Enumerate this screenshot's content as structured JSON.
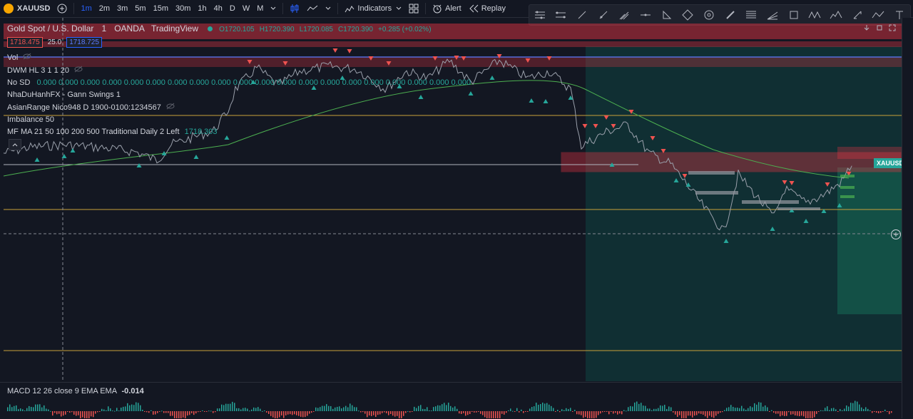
{
  "toolbar": {
    "symbol": "XAUUSD",
    "add_symbol_icon": "plus-circle-icon",
    "intervals": [
      "1m",
      "2m",
      "3m",
      "5m",
      "15m",
      "30m",
      "1h",
      "4h",
      "D",
      "W",
      "M"
    ],
    "active_interval": "1m",
    "indicators_label": "Indicators",
    "alert_label": "Alert",
    "replay_label": "Replay"
  },
  "drawing_tools": [
    "horizontal-lines-icon",
    "parallel-channel-icon",
    "trend-line-icon",
    "ray-icon",
    "pitchfork-icon",
    "horizontal-ray-icon",
    "triangle-icon",
    "diamond-icon",
    "circle-icon",
    "brush-icon",
    "fib-icon",
    "fib-fan-icon",
    "rectangle-icon",
    "pattern-icon",
    "elliott-icon",
    "measure-icon",
    "path-icon",
    "text-icon"
  ],
  "header": {
    "title": "Gold Spot / U.S. Dollar",
    "interval": "1",
    "broker": "OANDA",
    "source": "TradingView",
    "ohlc": {
      "o": "O1720.105",
      "h": "H1720.390",
      "l": "L1720.085",
      "c": "C1720.390",
      "chg": "+0.285 (+0.02%)"
    }
  },
  "price_boxes": {
    "bid": "1718.475",
    "spread": "25.0",
    "ask": "1718.725"
  },
  "legends": [
    {
      "name": "Vol",
      "values": ""
    },
    {
      "name": "DWM HL 3 1 1 20",
      "values": ""
    },
    {
      "name": "No SD",
      "values": "0.000 0.000 0.000 0.000 0.000 0.000 0.000 0.000 0.000 0.000 0.000 0.000 0.000 0.000 0.000 0.000 0.000 0.000 0.000 0.000"
    },
    {
      "name": "NhaDuHanhFX - Gann Swings 1",
      "values": ""
    },
    {
      "name": "AsianRange Nico948 D 1900-0100:1234567",
      "values": ""
    },
    {
      "name": "Imbalance 50",
      "values": ""
    },
    {
      "name": "MF MA 21 50 100 200 500 Traditional Daily 2 Left",
      "values": "1718.303"
    }
  ],
  "symbol_tag": "XAUUSD",
  "macd": {
    "label": "MACD 12 26 close 9 EMA EMA",
    "value": "-0.014"
  },
  "colors": {
    "up": "#26a69a",
    "down": "#ef5350",
    "ma": "#4caf50",
    "level": "#c8a13a",
    "zone": "#f23645",
    "teal_zone": "#0f3b3a"
  }
}
